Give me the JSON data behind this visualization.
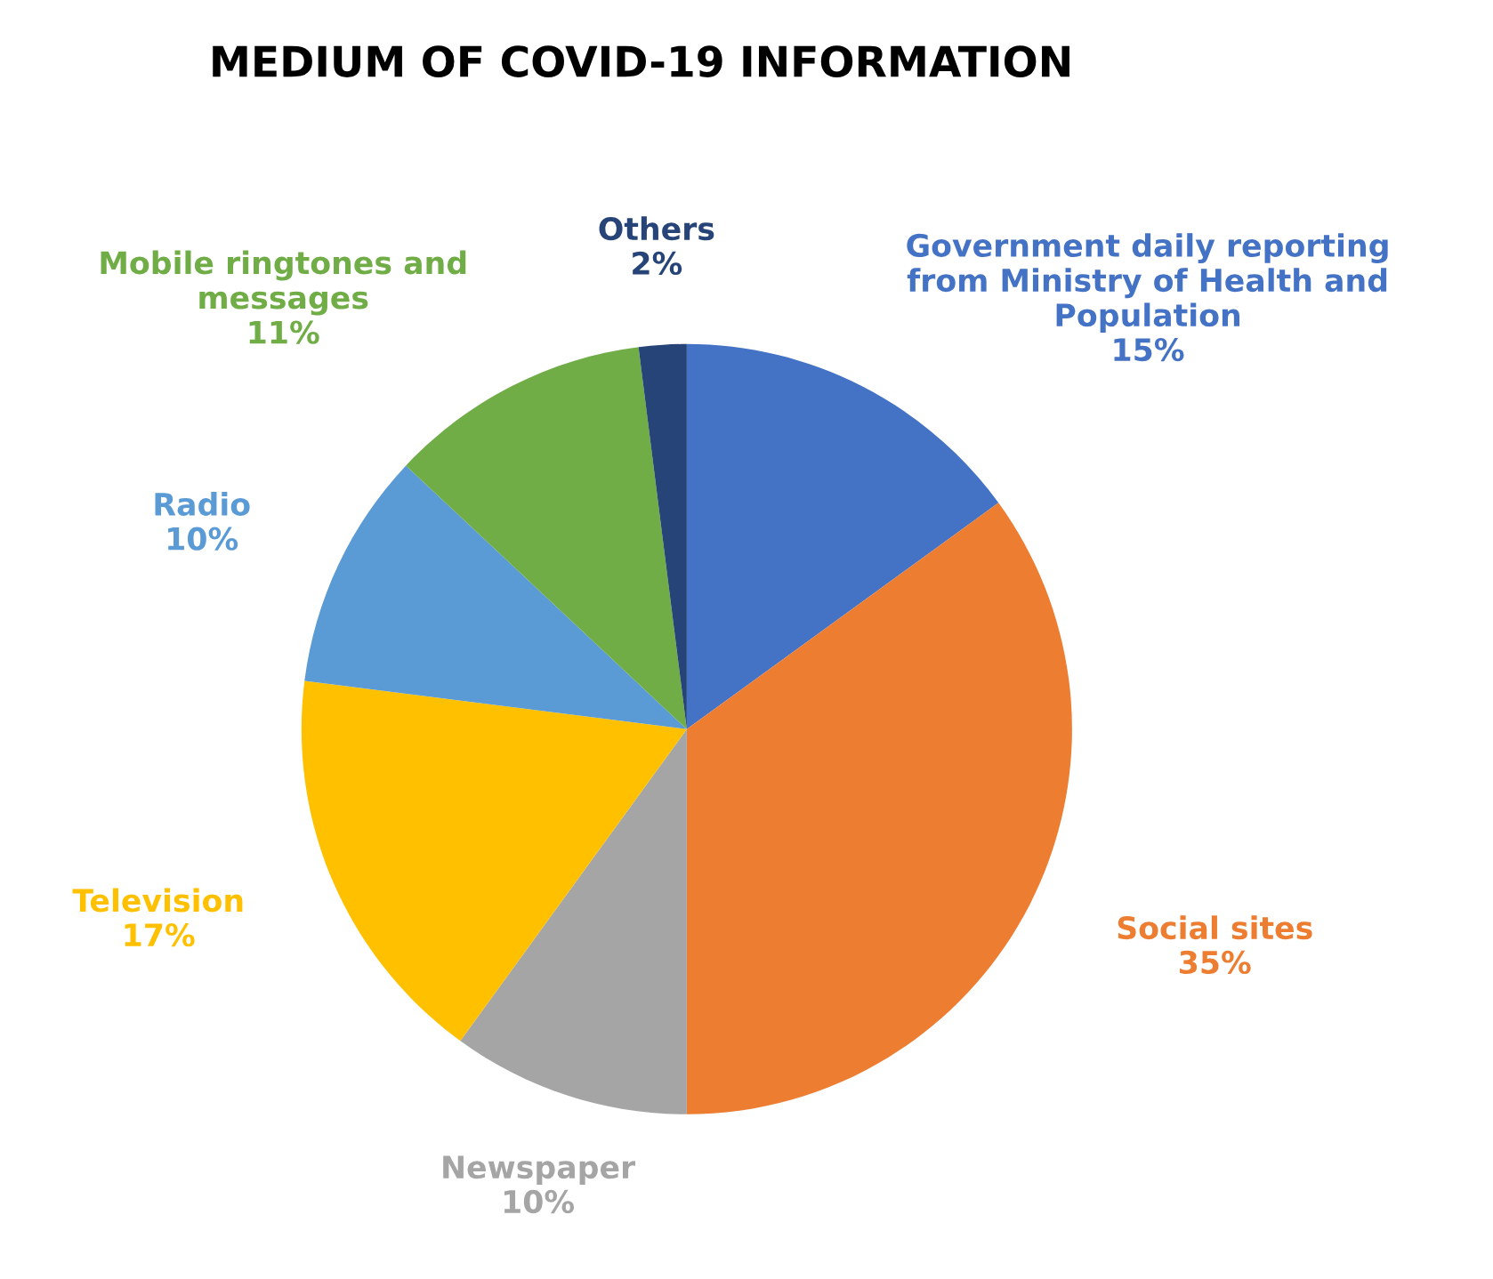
{
  "chart_data": {
    "type": "pie",
    "title": "MEDIUM OF COVID-19 INFORMATION",
    "categories": [
      "Government daily reporting\nfrom Ministry of Health and\nPopulation",
      "Social sites",
      "Newspaper",
      "Television",
      "Radio",
      "Mobile ringtones and\nmessages",
      "Others"
    ],
    "values": [
      15,
      35,
      10,
      17,
      10,
      11,
      2
    ],
    "value_labels": [
      "15%",
      "35%",
      "10%",
      "17%",
      "10%",
      "11%",
      "2%"
    ],
    "colors": [
      "#4472c4",
      "#ed7d31",
      "#a5a5a5",
      "#ffc000",
      "#5b9bd5",
      "#70ad47",
      "#264478"
    ],
    "legend": false
  }
}
